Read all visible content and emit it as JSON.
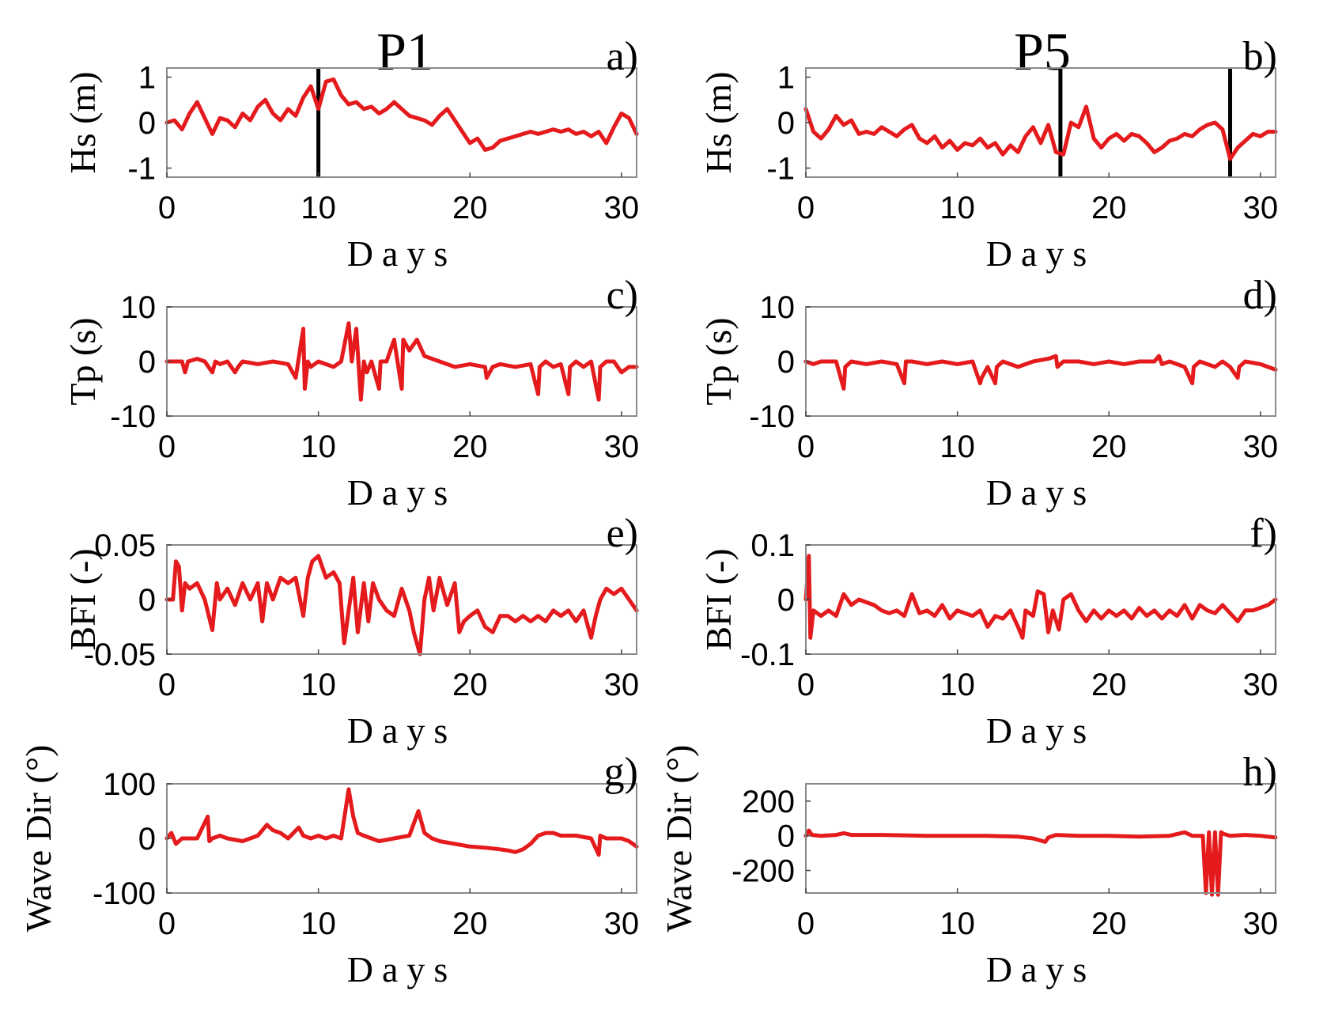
{
  "colors": {
    "series": "#e41a1c",
    "marker": "#000000"
  },
  "column_titles": [
    "P1",
    "P5"
  ],
  "chart_data": [
    {
      "type": "line",
      "panel_label": "a)",
      "ylabel": "Hs (m)",
      "xlabel": "Days",
      "xlim": [
        0,
        31
      ],
      "ylim": [
        -1.2,
        1.2
      ],
      "xticks": [
        0,
        10,
        20,
        30
      ],
      "yticks": [
        -1,
        0,
        1
      ],
      "vlines": [
        10
      ],
      "x": [
        0,
        0.5,
        1,
        1.5,
        2,
        2.5,
        3,
        3.5,
        4,
        4.5,
        5,
        5.5,
        6,
        6.5,
        7,
        7.5,
        8,
        8.5,
        9,
        9.5,
        10,
        10.5,
        11,
        11.5,
        12,
        12.5,
        13,
        13.5,
        14,
        14.5,
        15,
        15.5,
        16,
        16.5,
        17,
        17.5,
        18,
        18.5,
        19,
        19.5,
        20,
        20.5,
        21,
        21.5,
        22,
        22.5,
        23,
        23.5,
        24,
        24.5,
        25,
        25.5,
        26,
        26.5,
        27,
        27.5,
        28,
        28.5,
        29,
        29.5,
        30,
        30.5,
        31
      ],
      "y": [
        0,
        0.05,
        -0.15,
        0.2,
        0.45,
        0.1,
        -0.25,
        0.1,
        0.05,
        -0.1,
        0.2,
        0.05,
        0.35,
        0.5,
        0.2,
        0.05,
        0.3,
        0.15,
        0.55,
        0.8,
        0.3,
        0.9,
        0.95,
        0.6,
        0.4,
        0.45,
        0.3,
        0.35,
        0.2,
        0.3,
        0.45,
        0.3,
        0.15,
        0.1,
        0.05,
        -0.05,
        0.15,
        0.3,
        0.05,
        -0.2,
        -0.45,
        -0.35,
        -0.6,
        -0.55,
        -0.4,
        -0.35,
        -0.3,
        -0.25,
        -0.2,
        -0.25,
        -0.2,
        -0.15,
        -0.2,
        -0.15,
        -0.25,
        -0.2,
        -0.3,
        -0.2,
        -0.45,
        -0.1,
        0.2,
        0.1,
        -0.25
      ]
    },
    {
      "type": "line",
      "panel_label": "b)",
      "ylabel": "Hs (m)",
      "xlabel": "Days",
      "xlim": [
        0,
        31
      ],
      "ylim": [
        -1.2,
        1.2
      ],
      "xticks": [
        0,
        10,
        20,
        30
      ],
      "yticks": [
        -1,
        0,
        1
      ],
      "vlines": [
        16.8,
        28
      ],
      "x": [
        0,
        0.5,
        1,
        1.5,
        2,
        2.5,
        3,
        3.5,
        4,
        4.5,
        5,
        5.5,
        6,
        6.5,
        7,
        7.5,
        8,
        8.5,
        9,
        9.5,
        10,
        10.5,
        11,
        11.5,
        12,
        12.5,
        13,
        13.5,
        14,
        14.5,
        15,
        15.5,
        16,
        16.5,
        17,
        17.5,
        18,
        18.5,
        19,
        19.5,
        20,
        20.5,
        21,
        21.5,
        22,
        22.5,
        23,
        23.5,
        24,
        24.5,
        25,
        25.5,
        26,
        26.5,
        27,
        27.5,
        28,
        28.5,
        29,
        29.5,
        30,
        30.5,
        31
      ],
      "y": [
        0.3,
        -0.2,
        -0.35,
        -0.15,
        0.15,
        -0.05,
        0.05,
        -0.25,
        -0.2,
        -0.25,
        -0.1,
        -0.2,
        -0.3,
        -0.15,
        -0.05,
        -0.35,
        -0.45,
        -0.3,
        -0.55,
        -0.4,
        -0.6,
        -0.45,
        -0.5,
        -0.35,
        -0.55,
        -0.45,
        -0.7,
        -0.5,
        -0.65,
        -0.3,
        -0.1,
        -0.45,
        -0.05,
        -0.65,
        -0.7,
        0,
        -0.1,
        0.35,
        -0.35,
        -0.55,
        -0.35,
        -0.25,
        -0.4,
        -0.25,
        -0.3,
        -0.45,
        -0.65,
        -0.55,
        -0.4,
        -0.35,
        -0.25,
        -0.3,
        -0.15,
        -0.05,
        0,
        -0.15,
        -0.8,
        -0.55,
        -0.4,
        -0.25,
        -0.3,
        -0.2,
        -0.2
      ]
    },
    {
      "type": "line",
      "panel_label": "c)",
      "ylabel": "Tp (s)",
      "xlabel": "Days",
      "xlim": [
        0,
        31
      ],
      "ylim": [
        -10,
        10
      ],
      "xticks": [
        0,
        10,
        20,
        30
      ],
      "yticks": [
        -10,
        0,
        10
      ],
      "vlines": [],
      "x": [
        0,
        1,
        1.2,
        1.4,
        2,
        2.5,
        3,
        3.2,
        3.5,
        4,
        4.5,
        4.7,
        5,
        6,
        7,
        8,
        8.5,
        9,
        9.1,
        9.3,
        9.5,
        10,
        11,
        11.5,
        12,
        12.2,
        12.5,
        12.8,
        13,
        13.2,
        13.5,
        14,
        14.1,
        14.5,
        15,
        15.5,
        15.6,
        16,
        16.5,
        17,
        17.5,
        18,
        19,
        20,
        21,
        21.1,
        21.5,
        22,
        23,
        24,
        24.5,
        24.6,
        25,
        25.5,
        26,
        26.5,
        26.6,
        27,
        27.5,
        28,
        28.5,
        28.6,
        29,
        29.5,
        30,
        30.5,
        31
      ],
      "y": [
        0,
        0,
        -2,
        0,
        0.5,
        0,
        -2,
        0,
        -0.5,
        0,
        -2,
        -1,
        0,
        -0.5,
        0,
        -0.5,
        -3,
        6,
        -5,
        0,
        -1,
        0,
        -1,
        0,
        7,
        0,
        6,
        -7,
        0,
        -2,
        0,
        -5,
        0,
        0,
        4,
        -5,
        4,
        2,
        4,
        1,
        0.5,
        0,
        -1,
        -0.5,
        -1,
        -3,
        -1,
        -0.5,
        -1,
        -0.5,
        -6,
        -1,
        0,
        -1,
        -0.5,
        -6,
        -1,
        0,
        -1,
        0,
        -7,
        -1,
        0,
        0,
        -2,
        -1,
        -1
      ]
    },
    {
      "type": "line",
      "panel_label": "d)",
      "ylabel": "Tp (s)",
      "xlabel": "Days",
      "xlim": [
        0,
        31
      ],
      "ylim": [
        -10,
        10
      ],
      "xticks": [
        0,
        10,
        20,
        30
      ],
      "yticks": [
        -10,
        0,
        10
      ],
      "vlines": [],
      "x": [
        0,
        0.5,
        1,
        2,
        2.5,
        2.6,
        3,
        4,
        5,
        6,
        6.5,
        6.6,
        7,
        8,
        9,
        10,
        11,
        11.5,
        11.6,
        12,
        12.5,
        12.6,
        13,
        14,
        15,
        16,
        16.5,
        16.6,
        17,
        18,
        19,
        20,
        21,
        22,
        23,
        23.3,
        23.5,
        24,
        25,
        25.5,
        25.6,
        26,
        27,
        27.5,
        28,
        28.5,
        28.6,
        29,
        30,
        30.5,
        31
      ],
      "y": [
        0,
        -0.5,
        0,
        0,
        -5,
        -1,
        0,
        -0.5,
        0,
        -0.5,
        -4,
        0,
        0,
        -0.5,
        0,
        -0.5,
        0,
        -4,
        -3,
        -1,
        -4,
        -1,
        0,
        -1,
        0,
        0.5,
        1,
        -1,
        0,
        0,
        -0.5,
        0,
        -0.5,
        0,
        0,
        1,
        -0.5,
        0,
        -1,
        -4,
        -1,
        0,
        -1,
        0,
        -1,
        -3,
        -1,
        0,
        -0.5,
        -1,
        -1.5
      ]
    },
    {
      "type": "line",
      "panel_label": "e)",
      "ylabel": "BFI (-)",
      "xlabel": "Days",
      "xlim": [
        0,
        31
      ],
      "ylim": [
        -0.05,
        0.05
      ],
      "xticks": [
        0,
        10,
        20,
        30
      ],
      "yticks": [
        -0.05,
        0,
        0.05
      ],
      "vlines": [],
      "x": [
        0,
        0.4,
        0.6,
        0.8,
        1,
        1.2,
        1.5,
        2,
        2.5,
        3,
        3.3,
        3.5,
        4,
        4.5,
        5,
        5.5,
        6,
        6.3,
        6.6,
        7,
        7.5,
        8,
        8.5,
        9,
        9.3,
        9.6,
        10,
        10.5,
        11,
        11.4,
        11.7,
        12,
        12.3,
        12.6,
        13,
        13.3,
        13.6,
        14,
        14.5,
        15,
        15.5,
        16,
        16.3,
        16.7,
        17,
        17.3,
        17.6,
        18,
        18.5,
        19,
        19.3,
        19.6,
        20,
        20.5,
        21,
        21.5,
        22,
        22.5,
        23,
        23.5,
        24,
        24.5,
        25,
        25.5,
        26,
        26.5,
        27,
        27.5,
        28,
        28.3,
        28.6,
        29,
        29.5,
        30,
        30.5,
        31
      ],
      "y": [
        0,
        0,
        0.035,
        0.03,
        -0.01,
        0.015,
        0.01,
        0.015,
        0,
        -0.028,
        0.015,
        0,
        0.01,
        -0.005,
        0.015,
        0,
        0.015,
        -0.02,
        0.015,
        0,
        0.02,
        0.015,
        0.02,
        -0.015,
        0.02,
        0.035,
        0.04,
        0.02,
        0.025,
        0.015,
        -0.04,
        -0.01,
        0.02,
        -0.03,
        0.015,
        -0.02,
        0.015,
        0,
        -0.01,
        -0.015,
        0.01,
        -0.01,
        -0.03,
        -0.05,
        0,
        0.02,
        -0.01,
        0.02,
        -0.005,
        0.015,
        -0.03,
        -0.02,
        -0.015,
        -0.01,
        -0.025,
        -0.03,
        -0.015,
        -0.015,
        -0.02,
        -0.015,
        -0.02,
        -0.015,
        -0.02,
        -0.01,
        -0.015,
        -0.01,
        -0.02,
        -0.01,
        -0.035,
        -0.015,
        0,
        0.01,
        0.005,
        0.01,
        0,
        -0.01
      ]
    },
    {
      "type": "line",
      "panel_label": "f)",
      "ylabel": "BFI (-)",
      "xlabel": "Days",
      "xlim": [
        0,
        31
      ],
      "ylim": [
        -0.1,
        0.1
      ],
      "xticks": [
        0,
        10,
        20,
        30
      ],
      "yticks": [
        -0.1,
        0,
        0.1
      ],
      "vlines": [],
      "x": [
        0,
        0.2,
        0.3,
        0.5,
        1,
        1.5,
        2,
        2.5,
        3,
        3.5,
        4,
        4.5,
        5,
        5.5,
        6,
        6.5,
        7,
        7.5,
        8,
        8.5,
        9,
        9.5,
        10,
        10.5,
        11,
        11.5,
        12,
        12.5,
        13,
        13.5,
        14,
        14.3,
        14.5,
        15,
        15.3,
        15.7,
        16,
        16.3,
        16.7,
        17,
        17.5,
        18,
        18.5,
        19,
        19.5,
        20,
        20.5,
        21,
        21.5,
        22,
        22.5,
        23,
        23.5,
        24,
        24.5,
        25,
        25.5,
        26,
        26.5,
        27,
        27.5,
        28,
        28.5,
        29,
        29.5,
        30,
        30.5,
        31
      ],
      "y": [
        0,
        0.08,
        -0.07,
        -0.02,
        -0.03,
        -0.02,
        -0.03,
        0.01,
        -0.01,
        0,
        -0.005,
        -0.01,
        -0.02,
        -0.025,
        -0.02,
        -0.03,
        0.01,
        -0.025,
        -0.02,
        -0.03,
        -0.01,
        -0.035,
        -0.02,
        -0.025,
        -0.03,
        -0.02,
        -0.05,
        -0.03,
        -0.035,
        -0.02,
        -0.05,
        -0.07,
        -0.02,
        -0.03,
        0.015,
        0.01,
        -0.06,
        -0.02,
        -0.055,
        0,
        0.01,
        -0.02,
        -0.04,
        -0.02,
        -0.035,
        -0.02,
        -0.03,
        -0.02,
        -0.035,
        -0.015,
        -0.03,
        -0.02,
        -0.035,
        -0.02,
        -0.03,
        -0.01,
        -0.035,
        -0.01,
        -0.02,
        -0.025,
        -0.01,
        -0.025,
        -0.04,
        -0.02,
        -0.02,
        -0.015,
        -0.01,
        0
      ]
    },
    {
      "type": "line",
      "panel_label": "g)",
      "ylabel": "Wave Dir (°)",
      "xlabel": "Days",
      "xlim": [
        0,
        31
      ],
      "ylim": [
        -100,
        100
      ],
      "xticks": [
        0,
        10,
        20,
        30
      ],
      "yticks": [
        -100,
        0,
        100
      ],
      "vlines": [],
      "x": [
        0,
        0.3,
        0.6,
        1,
        1.5,
        2,
        2.7,
        2.8,
        3,
        3.5,
        4,
        5,
        6,
        6.6,
        7,
        7.5,
        8,
        8.7,
        9,
        9.5,
        10,
        10.5,
        11,
        11.5,
        12,
        12.3,
        12.6,
        13,
        14,
        15,
        16,
        16.6,
        17,
        17.5,
        18,
        19,
        20,
        21,
        22,
        22.5,
        23,
        23.5,
        24,
        24.5,
        25,
        25.5,
        26,
        27,
        28,
        28.5,
        28.6,
        29,
        30,
        30.5,
        31
      ],
      "y": [
        0,
        10,
        -10,
        0,
        0,
        0,
        40,
        -5,
        0,
        5,
        0,
        -5,
        5,
        25,
        15,
        10,
        0,
        20,
        5,
        0,
        5,
        0,
        5,
        0,
        90,
        40,
        10,
        5,
        -5,
        0,
        5,
        50,
        10,
        0,
        -5,
        -10,
        -15,
        -17,
        -20,
        -22,
        -25,
        -20,
        -10,
        5,
        10,
        10,
        5,
        5,
        0,
        -30,
        5,
        0,
        0,
        -5,
        -15
      ]
    },
    {
      "type": "line",
      "panel_label": "h)",
      "ylabel": "Wave Dir (°)",
      "xlabel": "Days",
      "xlim": [
        0,
        31
      ],
      "ylim": [
        -330,
        300
      ],
      "xticks": [
        0,
        10,
        20,
        30
      ],
      "yticks": [
        -200,
        0,
        200
      ],
      "vlines": [],
      "x": [
        0,
        0.2,
        0.4,
        1,
        2,
        2.5,
        3,
        5,
        8,
        12,
        14,
        15,
        15.8,
        16,
        16.5,
        18,
        20,
        22,
        24,
        25,
        25.5,
        26.2,
        26.4,
        26.6,
        26.8,
        27,
        27.2,
        27.4,
        27.6,
        28,
        29,
        30,
        31
      ],
      "y": [
        0,
        30,
        5,
        0,
        5,
        15,
        5,
        5,
        0,
        0,
        -5,
        -15,
        -35,
        -10,
        5,
        0,
        0,
        -5,
        0,
        20,
        0,
        0,
        -330,
        20,
        -340,
        20,
        -340,
        20,
        10,
        0,
        5,
        0,
        -10
      ]
    }
  ]
}
